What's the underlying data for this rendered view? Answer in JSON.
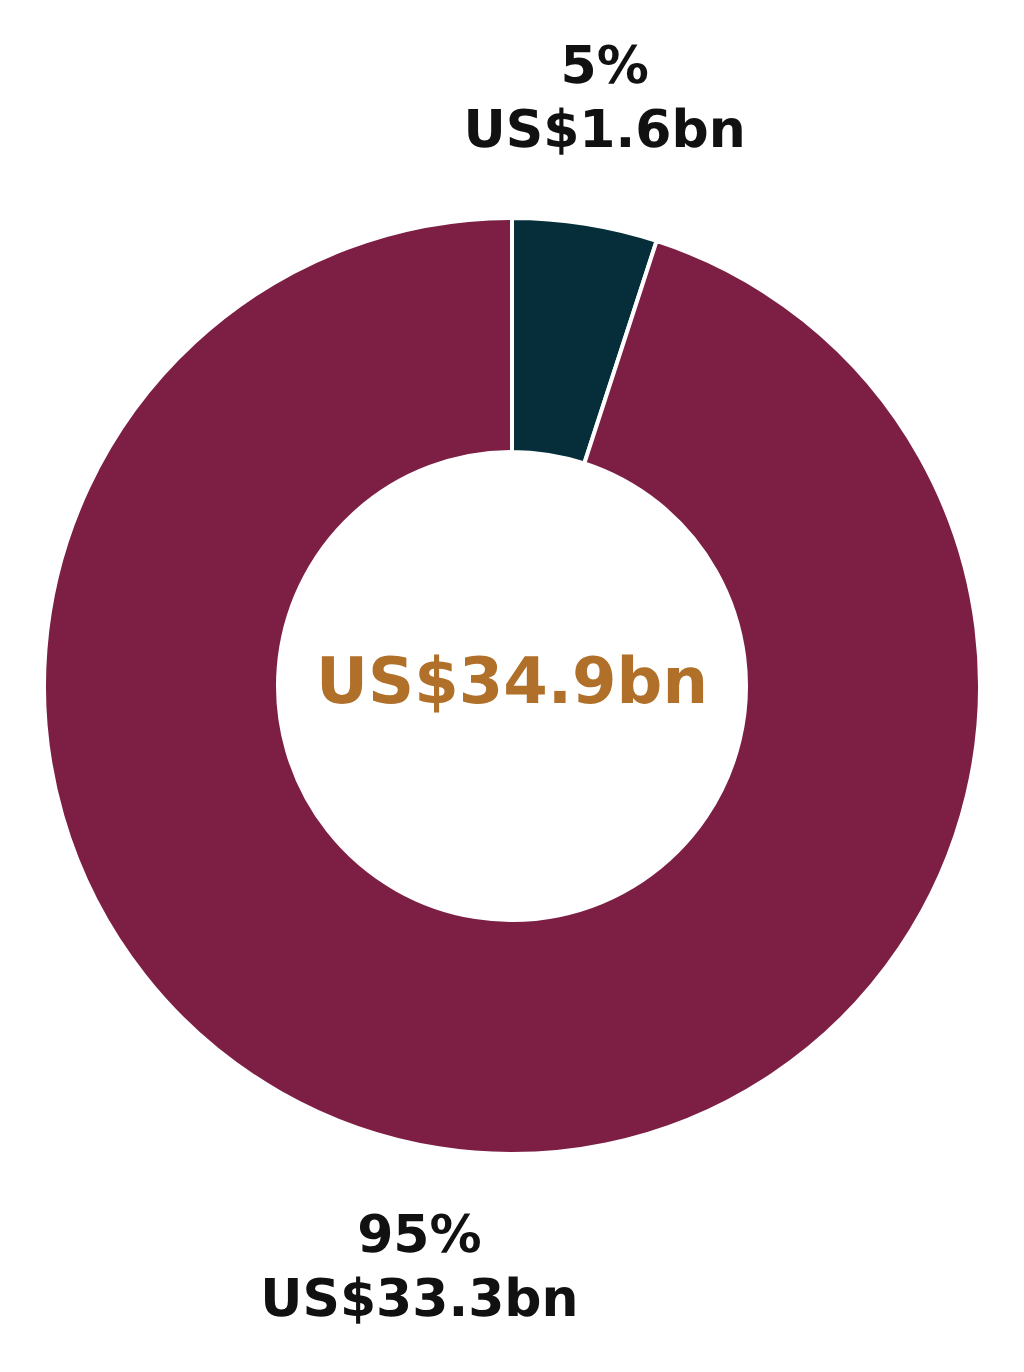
{
  "chart_data": {
    "type": "donut",
    "categories": [
      null,
      null
    ],
    "values": [
      5,
      95
    ],
    "colors": [
      "#052e3a",
      "#7d1f45"
    ],
    "value_labels": [
      "5%\nUS$1.6bn",
      "95%\nUS$33.3bn"
    ],
    "annotations": [
      "US$34.9bn"
    ],
    "legend": false
  }
}
